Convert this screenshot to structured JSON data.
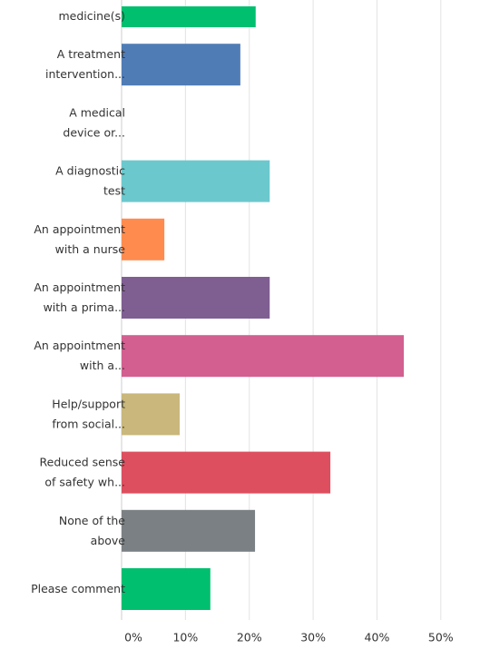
{
  "chart_data": {
    "type": "bar",
    "orientation": "horizontal",
    "categories": [
      "medicine(s)",
      "A treatment\nintervention...",
      "A medical\ndevice or...",
      "A diagnostic\ntest",
      "An appointment\nwith a nurse",
      "An appointment\nwith a prima...",
      "An appointment\nwith a...",
      "Help/support\nfrom social...",
      "Reduced sense\nof safety wh...",
      "None of the\nabove",
      "Please comment"
    ],
    "values": [
      21,
      18.6,
      0,
      23.2,
      6.7,
      23.2,
      44.2,
      9.1,
      32.7,
      20.9,
      13.9
    ],
    "colors": [
      "#00bf6f",
      "#507cb6",
      "#6bc8cd",
      "#6bc8cd",
      "#ff8b4f",
      "#7f5f92",
      "#d25f90",
      "#c9b77b",
      "#dd4f5e",
      "#7a8083",
      "#00bf6f"
    ],
    "xlim": [
      0,
      55
    ],
    "xticks": [
      {
        "value": 0,
        "label": "0%"
      },
      {
        "value": 10,
        "label": "10%"
      },
      {
        "value": 20,
        "label": "20%"
      },
      {
        "value": 30,
        "label": "30%"
      },
      {
        "value": 40,
        "label": "40%"
      },
      {
        "value": 50,
        "label": "50%"
      }
    ],
    "grid": true
  }
}
